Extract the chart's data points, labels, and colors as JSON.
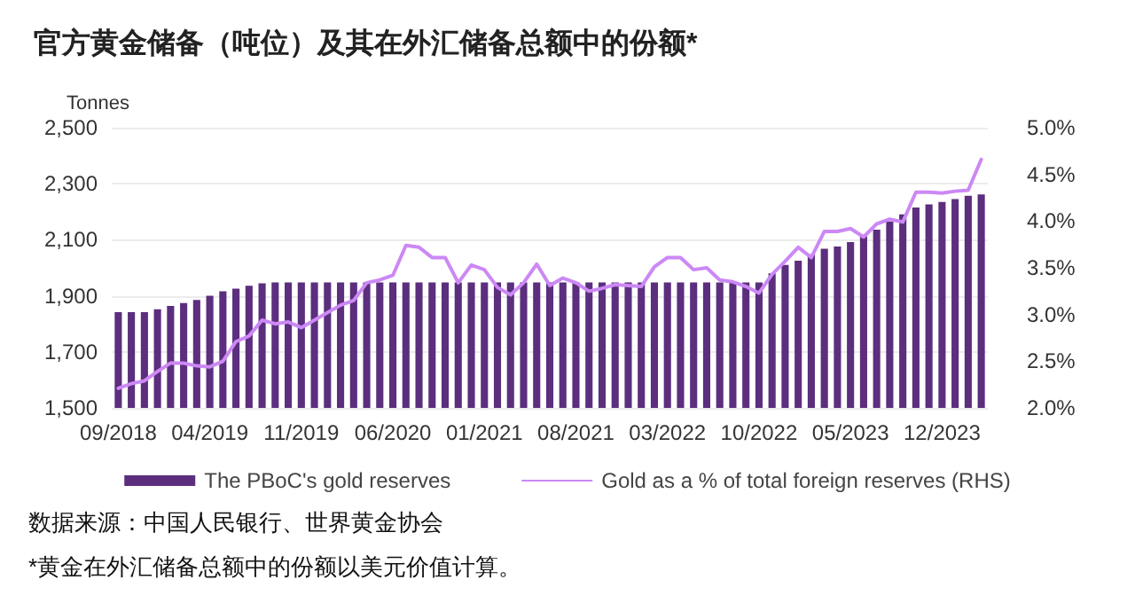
{
  "chart_data": {
    "type": "bar",
    "title": "官方黄金储备（吨位）及其在外汇储备总额中的份额*",
    "ylabel": "Tonnes",
    "categories": [
      "09/2018",
      null,
      null,
      null,
      null,
      null,
      null,
      "04/2019",
      null,
      null,
      null,
      null,
      null,
      null,
      "11/2019",
      null,
      null,
      null,
      null,
      null,
      null,
      "06/2020",
      null,
      null,
      null,
      null,
      null,
      null,
      "01/2021",
      null,
      null,
      null,
      null,
      null,
      null,
      "08/2021",
      null,
      null,
      null,
      null,
      null,
      null,
      "03/2022",
      null,
      null,
      null,
      null,
      null,
      null,
      "10/2022",
      null,
      null,
      null,
      null,
      null,
      null,
      "05/2023",
      null,
      null,
      null,
      null,
      null,
      null,
      "12/2023",
      null,
      null,
      null
    ],
    "series": [
      {
        "name": "The PBoC's gold reserves",
        "color": "#5c2e7e",
        "values": [
          1842,
          1842,
          1842,
          1852,
          1864,
          1874,
          1885,
          1900,
          1916,
          1926,
          1936,
          1945,
          1948,
          1948,
          1948,
          1948,
          1948,
          1948,
          1948,
          1948,
          1948,
          1948,
          1948,
          1948,
          1948,
          1948,
          1948,
          1948,
          1948,
          1948,
          1948,
          1948,
          1948,
          1948,
          1948,
          1948,
          1948,
          1948,
          1948,
          1948,
          1948,
          1948,
          1948,
          1948,
          1948,
          1948,
          1948,
          1948,
          1948,
          1948,
          1980,
          2010,
          2025,
          2048,
          2068,
          2076,
          2092,
          2113,
          2136,
          2165,
          2191,
          2215,
          2226,
          2235,
          2245,
          2257,
          2262
        ]
      },
      {
        "name": "Gold as a % of total foreign reserves (RHS)",
        "type": "line",
        "axis": "y2",
        "color": "#cc88f5",
        "values": [
          2.21,
          2.26,
          2.29,
          2.39,
          2.48,
          2.48,
          2.45,
          2.44,
          2.5,
          2.71,
          2.77,
          2.94,
          2.9,
          2.92,
          2.86,
          2.94,
          3.02,
          3.1,
          3.15,
          3.34,
          3.37,
          3.42,
          3.74,
          3.72,
          3.61,
          3.61,
          3.34,
          3.53,
          3.48,
          3.29,
          3.21,
          3.34,
          3.54,
          3.31,
          3.39,
          3.34,
          3.25,
          3.28,
          3.32,
          3.31,
          3.3,
          3.51,
          3.61,
          3.61,
          3.48,
          3.5,
          3.37,
          3.35,
          3.3,
          3.23,
          3.43,
          3.57,
          3.72,
          3.61,
          3.89,
          3.89,
          3.92,
          3.83,
          3.97,
          4.02,
          3.99,
          4.31,
          4.31,
          4.3,
          4.32,
          4.33,
          4.66
        ]
      }
    ],
    "ylim": [
      1500,
      2500
    ],
    "yticks": [
      {
        "value": 1500,
        "label": "1,500"
      },
      {
        "value": 1700,
        "label": "1,700"
      },
      {
        "value": 1900,
        "label": "1,900"
      },
      {
        "value": 2100,
        "label": "2,100"
      },
      {
        "value": 2300,
        "label": "2,300"
      },
      {
        "value": 2500,
        "label": "2,500"
      }
    ],
    "y2lim": [
      2,
      5
    ],
    "y2ticks": [
      {
        "value": 2,
        "label": "2.0%"
      },
      {
        "value": 2.5,
        "label": "2.5%"
      },
      {
        "value": 3,
        "label": "3.0%"
      },
      {
        "value": 3.5,
        "label": "3.5%"
      },
      {
        "value": 4,
        "label": "4.0%"
      },
      {
        "value": 4.5,
        "label": "4.5%"
      },
      {
        "value": 5,
        "label": "5.0%"
      }
    ],
    "grid": "y",
    "legend": "bottom",
    "marker": "none",
    "annotations": [
      "数据来源：中国人民银行、世界黄金协会",
      "*黄金在外汇储备总额中的份额以美元价值计算。"
    ]
  }
}
